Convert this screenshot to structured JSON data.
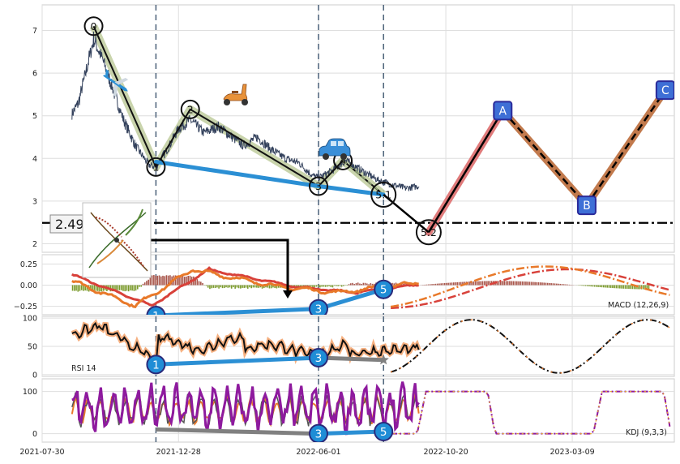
{
  "chart_data": [
    {
      "type": "line",
      "panel": "price",
      "ylim": [
        1.8,
        7.6
      ],
      "yticks": [
        "2",
        "3",
        "4",
        "5",
        "6",
        "7"
      ],
      "xlim": [
        "2021-07-30",
        "2023-06-30"
      ],
      "grid": true,
      "price_series": {
        "anchors": [
          [
            "2021-09-01",
            5.05
          ],
          [
            "2021-09-08",
            5.3
          ],
          [
            "2021-09-16",
            6.0
          ],
          [
            "2021-09-25",
            6.8
          ],
          [
            "2021-10-05",
            6.3
          ],
          [
            "2021-10-15",
            5.7
          ],
          [
            "2021-10-28",
            4.9
          ],
          [
            "2021-11-10",
            4.3
          ],
          [
            "2021-11-25",
            3.85
          ],
          [
            "2021-12-03",
            3.8
          ],
          [
            "2021-12-15",
            4.2
          ],
          [
            "2021-12-28",
            4.7
          ],
          [
            "2022-01-10",
            4.9
          ],
          [
            "2022-01-25",
            4.6
          ],
          [
            "2022-02-10",
            4.75
          ],
          [
            "2022-02-25",
            4.5
          ],
          [
            "2022-03-10",
            4.3
          ],
          [
            "2022-03-25",
            4.5
          ],
          [
            "2022-04-10",
            4.2
          ],
          [
            "2022-04-25",
            4.0
          ],
          [
            "2022-05-10",
            3.9
          ],
          [
            "2022-05-25",
            3.6
          ],
          [
            "2022-06-01",
            3.55
          ],
          [
            "2022-06-15",
            3.7
          ],
          [
            "2022-07-01",
            3.95
          ],
          [
            "2022-07-20",
            3.7
          ],
          [
            "2022-08-05",
            3.5
          ],
          [
            "2022-08-20",
            3.4
          ],
          [
            "2022-09-05",
            3.3
          ],
          [
            "2022-09-20",
            3.35
          ]
        ]
      },
      "vertical_lines": [
        "2021-12-03",
        "2022-06-01",
        "2022-08-12"
      ],
      "horizontal_line": {
        "value": 2.49,
        "label": "2.490"
      },
      "wave_points": [
        {
          "label": "0",
          "x": "2021-09-25",
          "y": 7.1
        },
        {
          "label": "1",
          "x": "2021-12-03",
          "y": 3.8
        },
        {
          "label": "2",
          "x": "2022-01-10",
          "y": 5.15
        },
        {
          "label": "3",
          "x": "2022-06-01",
          "y": 3.35
        },
        {
          "label": "4",
          "x": "2022-06-28",
          "y": 3.95
        },
        {
          "label": "5.1",
          "x": "2022-08-12",
          "y": 3.15
        },
        {
          "label": "5.2",
          "x": "2022-10-01",
          "y": 2.27
        }
      ],
      "projection_points": [
        {
          "label": "A",
          "x": "2022-12-22",
          "y": 5.12
        },
        {
          "label": "B",
          "x": "2023-03-25",
          "y": 2.9
        },
        {
          "label": "C",
          "x": "2023-06-20",
          "y": 5.6
        }
      ],
      "trend_line": [
        [
          "2021-12-03",
          3.92
        ],
        [
          "2022-06-01",
          3.35
        ],
        [
          "2022-08-12",
          3.15
        ]
      ]
    },
    {
      "type": "line",
      "panel": "macd",
      "ylim": [
        -0.35,
        0.36
      ],
      "yticks": [
        "0.25",
        "0.00",
        "−0.25"
      ],
      "label": "MACD (12,26,9)",
      "markers": [
        {
          "label": "1",
          "x": "2021-12-03",
          "y": -0.36
        },
        {
          "label": "3",
          "x": "2022-06-01",
          "y": -0.28
        },
        {
          "label": "5",
          "x": "2022-08-12",
          "y": -0.05
        }
      ]
    },
    {
      "type": "line",
      "panel": "rsi",
      "ylim": [
        -3,
        103
      ],
      "yticks": [
        "100",
        "50",
        "0"
      ],
      "label": "RSI 14",
      "markers": [
        {
          "label": "1",
          "x": "2021-12-03",
          "y": 18
        },
        {
          "label": "3",
          "x": "2022-06-01",
          "y": 30
        }
      ]
    },
    {
      "type": "line",
      "panel": "kdj",
      "ylim": [
        -20,
        130
      ],
      "yticks": [
        "100",
        "0"
      ],
      "label": "KDJ (9,3,3)",
      "markers": [
        {
          "label": "3",
          "x": "2022-06-01",
          "y": 0
        },
        {
          "label": "5",
          "x": "2022-08-12",
          "y": 5
        }
      ]
    }
  ],
  "x_axis": {
    "ticks": [
      "2021-07-30",
      "2021-12-28",
      "2022-06-01",
      "2022-10-20",
      "2023-03-09"
    ]
  },
  "colors": {
    "price": "#33415c",
    "wave_band": "#c3cfa3",
    "trend": "#2b8fd4",
    "marker_fill": "#1f8dd6",
    "projection_box": "#3e6fd6",
    "proj_ab": "#e07b7b",
    "proj_bc": "#c27a4d",
    "macd_line": "#e8792a",
    "macd_signal": "#d8413a",
    "kdj_j": "#8e1a9e"
  },
  "icons": [
    "airplane-icon",
    "scooter-icon",
    "car-icon",
    "plant-thumbnail-icon",
    "star-icon"
  ]
}
